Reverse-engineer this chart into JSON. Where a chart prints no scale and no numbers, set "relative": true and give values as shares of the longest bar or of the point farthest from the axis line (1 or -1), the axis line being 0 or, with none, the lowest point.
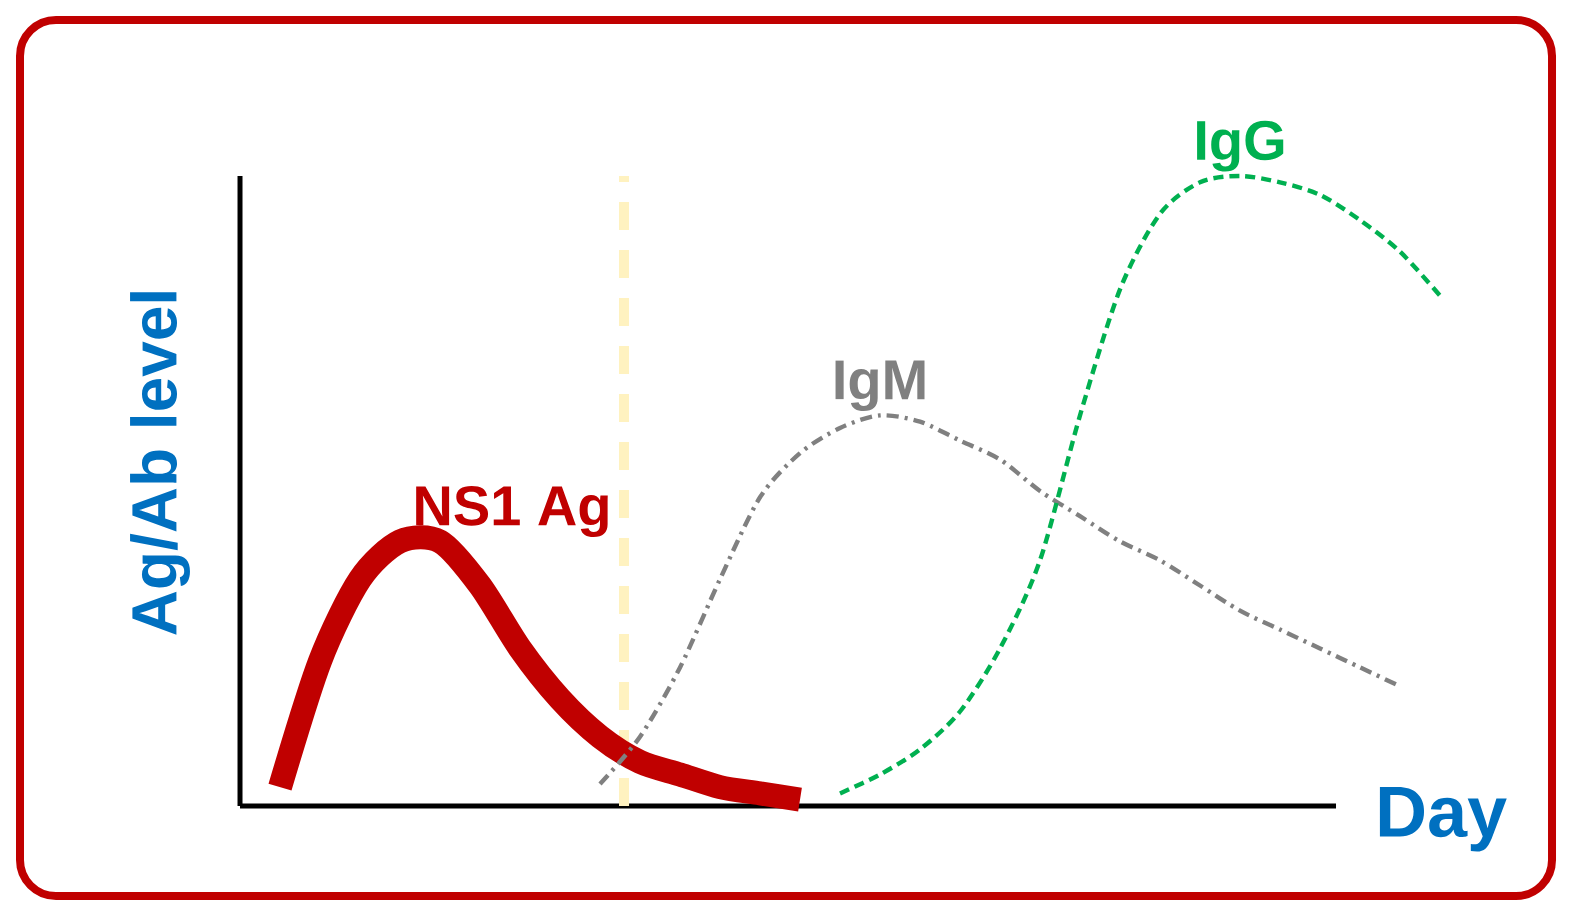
{
  "chart_data": {
    "type": "line",
    "relative": true,
    "xlabel": "Day",
    "ylabel": "Ag/Ab level",
    "categories": [
      null,
      null,
      null,
      null,
      null,
      null,
      null,
      null,
      null,
      null,
      null,
      null,
      null,
      null,
      null,
      null,
      null,
      null,
      null,
      null,
      null,
      null,
      null,
      null,
      null,
      null,
      null,
      null,
      null,
      null
    ],
    "series": [
      {
        "name": "NS1 Ag",
        "color": "#c00000",
        "line_style": "solid",
        "values": [
          0.03,
          0.23,
          0.36,
          0.42,
          0.42,
          0.35,
          0.25,
          0.17,
          0.11,
          0.07,
          0.05,
          0.03,
          0.02,
          0.01,
          null,
          null,
          null,
          null,
          null,
          null,
          null,
          null,
          null,
          null,
          null,
          null,
          null,
          null,
          null,
          null
        ]
      },
      {
        "name": "IgM",
        "color": "#808080",
        "line_style": "dashdot",
        "values": [
          null,
          null,
          null,
          null,
          null,
          null,
          null,
          null,
          0.035,
          0.11,
          0.22,
          0.36,
          0.49,
          0.56,
          0.6,
          0.62,
          0.61,
          0.58,
          0.55,
          0.5,
          0.46,
          0.42,
          0.39,
          0.35,
          0.31,
          0.28,
          0.25,
          0.22,
          0.19,
          null
        ]
      },
      {
        "name": "IgG",
        "color": "#00b050",
        "line_style": "dashed",
        "values": [
          null,
          null,
          null,
          null,
          null,
          null,
          null,
          null,
          null,
          null,
          null,
          null,
          null,
          null,
          0.02,
          0.05,
          0.09,
          0.15,
          0.25,
          0.39,
          0.62,
          0.82,
          0.94,
          0.99,
          1.0,
          0.99,
          0.97,
          0.93,
          0.88,
          0.81
        ]
      }
    ],
    "marker": "none"
  }
}
